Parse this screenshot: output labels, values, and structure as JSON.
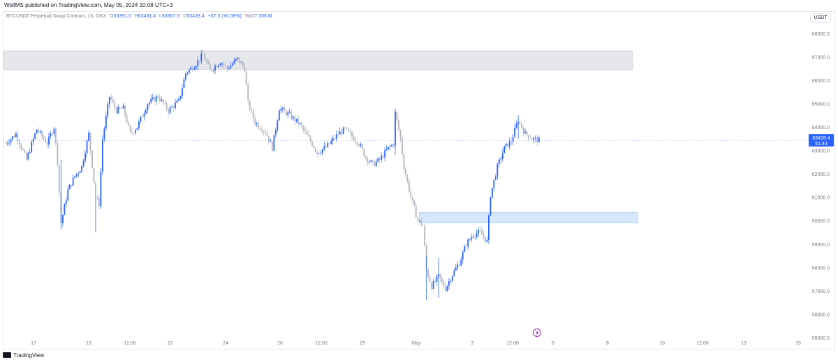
{
  "header": {
    "published": "WolfMS published on TradingView.com, May 05, 2024 10:08 UTC+3"
  },
  "legend": {
    "symbol": "BTCUSDT Perpetual Swap Contract, 1h, OKX",
    "o_label": "O",
    "o_value": "63391.0",
    "h_label": "H",
    "h_value": "63431.4",
    "l_label": "L",
    "l_value": "63367.5",
    "c_label": "C",
    "c_value": "63428.4",
    "change": "+37.3 (+0.06%)",
    "vol_label": "Vol",
    "vol_value": "17.336 M"
  },
  "currency_button": "USDT",
  "price_badge": {
    "price": "63428.4",
    "countdown": "51:43"
  },
  "footer": {
    "brand": "TradingView"
  },
  "colors": {
    "up": "#2962ff",
    "down": "#b2b5be",
    "zone_supply": "#e6e7eb",
    "zone_demand": "#d6e6fb",
    "badge": "#2962ff",
    "bolt": "#9c27b0"
  },
  "icons": [
    "lightning-bolt-icon",
    "tradingview-logo-icon"
  ],
  "chart_data": {
    "type": "candlestick",
    "y_ticks": [
      "68000.0",
      "67000.0",
      "66000.0",
      "65000.0",
      "64000.0",
      "63000.0",
      "62000.0",
      "61000.0",
      "60000.0",
      "59000.0",
      "58000.0",
      "57000.0",
      "56000.0",
      "55000.0"
    ],
    "ylim": [
      55000,
      68500
    ],
    "x_ticks": [
      "17",
      "19",
      "12:00",
      "22",
      "24",
      "26",
      "12:00",
      "29",
      "May",
      "3",
      "12:00",
      "6",
      "8",
      "10",
      "12:00",
      "13",
      "15"
    ],
    "zones": [
      {
        "name": "supply",
        "from_index": 0,
        "to_index": 362,
        "low": 66450,
        "high": 67250
      },
      {
        "name": "demand",
        "from_index": 240,
        "to_index": 365,
        "low": 59900,
        "high": 60350
      }
    ],
    "price_path": [
      [
        0,
        63300
      ],
      [
        6,
        63700
      ],
      [
        12,
        62600
      ],
      [
        18,
        63900
      ],
      [
        24,
        63300
      ],
      [
        28,
        64000
      ],
      [
        30,
        62500
      ],
      [
        32,
        59900
      ],
      [
        36,
        61300
      ],
      [
        40,
        61900
      ],
      [
        44,
        62300
      ],
      [
        48,
        63700
      ],
      [
        52,
        61000
      ],
      [
        54,
        60700
      ],
      [
        56,
        63500
      ],
      [
        60,
        65300
      ],
      [
        64,
        64700
      ],
      [
        68,
        64800
      ],
      [
        72,
        63700
      ],
      [
        76,
        64000
      ],
      [
        82,
        65000
      ],
      [
        88,
        65300
      ],
      [
        94,
        64700
      ],
      [
        100,
        65100
      ],
      [
        104,
        66300
      ],
      [
        110,
        66700
      ],
      [
        114,
        67100
      ],
      [
        118,
        66400
      ],
      [
        124,
        66800
      ],
      [
        128,
        66500
      ],
      [
        134,
        66900
      ],
      [
        138,
        66500
      ],
      [
        140,
        65000
      ],
      [
        144,
        64200
      ],
      [
        150,
        63800
      ],
      [
        154,
        63100
      ],
      [
        158,
        64800
      ],
      [
        164,
        64500
      ],
      [
        170,
        64100
      ],
      [
        176,
        63400
      ],
      [
        180,
        62900
      ],
      [
        186,
        63200
      ],
      [
        192,
        63700
      ],
      [
        196,
        63900
      ],
      [
        200,
        63600
      ],
      [
        204,
        63300
      ],
      [
        208,
        62700
      ],
      [
        212,
        62400
      ],
      [
        216,
        62600
      ],
      [
        220,
        63000
      ],
      [
        224,
        63300
      ],
      [
        225,
        64600
      ],
      [
        228,
        63500
      ],
      [
        230,
        62300
      ],
      [
        234,
        61000
      ],
      [
        238,
        60000
      ],
      [
        241,
        59800
      ],
      [
        243,
        57900
      ],
      [
        246,
        57200
      ],
      [
        250,
        57600
      ],
      [
        254,
        57100
      ],
      [
        258,
        57700
      ],
      [
        262,
        58200
      ],
      [
        266,
        59000
      ],
      [
        270,
        59400
      ],
      [
        274,
        59500
      ],
      [
        278,
        59100
      ],
      [
        280,
        61100
      ],
      [
        284,
        62300
      ],
      [
        288,
        63100
      ],
      [
        292,
        63400
      ],
      [
        296,
        64300
      ],
      [
        300,
        63700
      ],
      [
        304,
        63500
      ],
      [
        308,
        63428
      ]
    ],
    "candle_count": 308
  }
}
